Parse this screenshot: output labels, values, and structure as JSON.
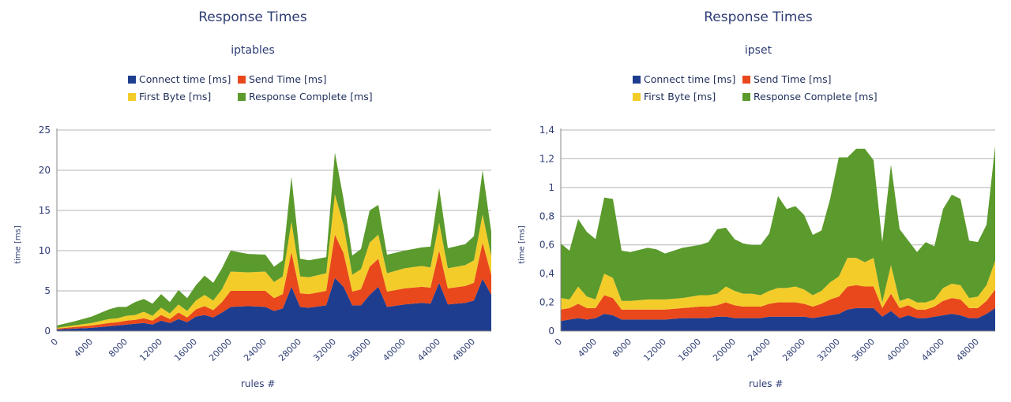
{
  "chart_data": [
    {
      "type": "area",
      "stacked": true,
      "title": "Response Times",
      "subtitle": "iptables",
      "xlabel": "rules #",
      "ylabel": "time [ms]",
      "ylim": [
        0,
        25
      ],
      "yticks": [
        "0",
        "5",
        "10",
        "15",
        "20",
        "25"
      ],
      "xlim": [
        0,
        50000
      ],
      "xticks": [
        "0",
        "4000",
        "8000",
        "12000",
        "16000",
        "20000",
        "24000",
        "28000",
        "32000",
        "36000",
        "40000",
        "44000",
        "48000"
      ],
      "grid": true,
      "legend_position": "top",
      "x": [
        0,
        2000,
        4000,
        6000,
        7000,
        8000,
        9000,
        10000,
        11000,
        12000,
        13000,
        14000,
        15000,
        16000,
        17000,
        18000,
        19000,
        20000,
        22000,
        24000,
        25000,
        26000,
        27000,
        28000,
        29000,
        31000,
        32000,
        33000,
        34000,
        35000,
        36000,
        37000,
        38000,
        40000,
        42000,
        43000,
        44000,
        45000,
        47000,
        48000,
        49000,
        50000
      ],
      "series": [
        {
          "name": "Connect time [ms]",
          "color": "#1f3d8f",
          "values": [
            0.2,
            0.3,
            0.4,
            0.6,
            0.7,
            0.8,
            0.9,
            1.0,
            0.8,
            1.3,
            1.0,
            1.5,
            1.1,
            1.8,
            2.0,
            1.7,
            2.3,
            3.0,
            3.1,
            3.0,
            2.5,
            2.8,
            5.5,
            3.0,
            2.9,
            3.2,
            6.6,
            5.5,
            3.2,
            3.2,
            4.5,
            5.5,
            3.0,
            3.3,
            3.5,
            3.4,
            6.0,
            3.3,
            3.5,
            3.8,
            6.5,
            4.5
          ]
        },
        {
          "name": "Send Time [ms]",
          "color": "#e8481c",
          "values": [
            0.1,
            0.2,
            0.3,
            0.4,
            0.4,
            0.5,
            0.5,
            0.6,
            0.5,
            0.7,
            0.5,
            0.8,
            0.6,
            0.9,
            1.1,
            0.9,
            1.3,
            2.0,
            1.9,
            2.0,
            1.6,
            1.8,
            4.3,
            1.7,
            1.7,
            1.8,
            5.4,
            4.2,
            1.7,
            2.0,
            3.5,
            3.5,
            1.9,
            2.0,
            2.0,
            2.0,
            4.0,
            2.0,
            2.1,
            2.2,
            4.5,
            2.5
          ]
        },
        {
          "name": "First Byte [ms]",
          "color": "#f3cc2a",
          "values": [
            0.1,
            0.2,
            0.3,
            0.5,
            0.5,
            0.6,
            0.6,
            0.8,
            0.6,
            0.9,
            0.7,
            1.0,
            0.8,
            1.1,
            1.4,
            1.2,
            1.6,
            2.4,
            2.3,
            2.4,
            2.0,
            2.2,
            3.8,
            2.1,
            2.1,
            2.2,
            5.0,
            3.5,
            2.1,
            2.5,
            3.0,
            3.0,
            2.3,
            2.5,
            2.6,
            2.5,
            3.5,
            2.5,
            2.6,
            2.8,
            3.5,
            2.3
          ]
        },
        {
          "name": "Response Complete [ms]",
          "color": "#5b9a2c",
          "values": [
            0.3,
            0.5,
            0.8,
            1.2,
            1.4,
            1.1,
            1.6,
            1.6,
            1.5,
            1.7,
            1.4,
            1.8,
            1.6,
            1.9,
            2.4,
            2.2,
            2.6,
            2.6,
            2.3,
            2.1,
            1.9,
            2.0,
            5.6,
            2.2,
            2.1,
            2.0,
            5.2,
            3.2,
            2.4,
            2.5,
            4.0,
            3.7,
            2.3,
            2.2,
            2.3,
            2.6,
            4.3,
            2.5,
            2.6,
            3.0,
            5.5,
            3.0
          ]
        }
      ]
    },
    {
      "type": "area",
      "stacked": true,
      "title": "Response Times",
      "subtitle": "ipset",
      "xlabel": "rules #",
      "ylabel": "time [ms]",
      "ylim": [
        0,
        1.4
      ],
      "yticks": [
        "0",
        "0,2",
        "0,4",
        "0,6",
        "0,8",
        "1",
        "1,2",
        "1,4"
      ],
      "xlim": [
        0,
        50000
      ],
      "xticks": [
        "0",
        "4000",
        "8000",
        "12000",
        "16000",
        "20000",
        "24000",
        "28000",
        "32000",
        "36000",
        "40000",
        "44000",
        "48000"
      ],
      "grid": true,
      "legend_position": "top",
      "x": [
        0,
        1000,
        2000,
        3000,
        4000,
        5000,
        6000,
        7000,
        8000,
        10000,
        11000,
        12000,
        14000,
        16000,
        17000,
        18000,
        19000,
        20000,
        21000,
        22000,
        23000,
        24000,
        25000,
        26000,
        27000,
        28000,
        29000,
        30000,
        31000,
        32000,
        33000,
        34000,
        35000,
        36000,
        37000,
        38000,
        39000,
        40000,
        41000,
        42000,
        43000,
        44000,
        45000,
        46000,
        47000,
        48000,
        49000,
        50000
      ],
      "series": [
        {
          "name": "Connect time [ms]",
          "color": "#1f3d8f",
          "values": [
            0.07,
            0.08,
            0.09,
            0.08,
            0.09,
            0.12,
            0.11,
            0.08,
            0.08,
            0.08,
            0.08,
            0.08,
            0.09,
            0.09,
            0.09,
            0.1,
            0.1,
            0.09,
            0.09,
            0.09,
            0.09,
            0.1,
            0.1,
            0.1,
            0.1,
            0.1,
            0.09,
            0.1,
            0.11,
            0.12,
            0.15,
            0.16,
            0.16,
            0.16,
            0.1,
            0.14,
            0.09,
            0.11,
            0.09,
            0.09,
            0.1,
            0.11,
            0.12,
            0.11,
            0.09,
            0.09,
            0.12,
            0.16
          ]
        },
        {
          "name": "Send Time [ms]",
          "color": "#e8481c",
          "values": [
            0.08,
            0.08,
            0.1,
            0.08,
            0.07,
            0.13,
            0.12,
            0.07,
            0.07,
            0.07,
            0.07,
            0.07,
            0.07,
            0.08,
            0.08,
            0.08,
            0.1,
            0.09,
            0.08,
            0.08,
            0.08,
            0.09,
            0.1,
            0.1,
            0.1,
            0.09,
            0.08,
            0.09,
            0.11,
            0.12,
            0.16,
            0.16,
            0.15,
            0.15,
            0.06,
            0.12,
            0.07,
            0.07,
            0.06,
            0.06,
            0.07,
            0.1,
            0.11,
            0.11,
            0.07,
            0.07,
            0.09,
            0.13
          ]
        },
        {
          "name": "First Byte [ms]",
          "color": "#f3cc2a",
          "values": [
            0.08,
            0.06,
            0.12,
            0.08,
            0.06,
            0.15,
            0.14,
            0.06,
            0.06,
            0.07,
            0.07,
            0.07,
            0.07,
            0.08,
            0.08,
            0.08,
            0.11,
            0.1,
            0.09,
            0.09,
            0.08,
            0.09,
            0.1,
            0.1,
            0.11,
            0.1,
            0.08,
            0.09,
            0.12,
            0.14,
            0.2,
            0.19,
            0.17,
            0.2,
            0.04,
            0.2,
            0.05,
            0.05,
            0.05,
            0.05,
            0.05,
            0.09,
            0.1,
            0.1,
            0.07,
            0.08,
            0.11,
            0.2
          ]
        },
        {
          "name": "Response Complete [ms]",
          "color": "#5b9a2c",
          "values": [
            0.38,
            0.34,
            0.47,
            0.45,
            0.42,
            0.53,
            0.55,
            0.35,
            0.34,
            0.36,
            0.35,
            0.32,
            0.35,
            0.35,
            0.37,
            0.45,
            0.41,
            0.36,
            0.35,
            0.34,
            0.35,
            0.4,
            0.64,
            0.55,
            0.56,
            0.52,
            0.42,
            0.42,
            0.58,
            0.83,
            0.7,
            0.76,
            0.79,
            0.68,
            0.42,
            0.7,
            0.5,
            0.4,
            0.35,
            0.42,
            0.37,
            0.55,
            0.62,
            0.6,
            0.4,
            0.38,
            0.42,
            0.8
          ]
        }
      ]
    }
  ]
}
